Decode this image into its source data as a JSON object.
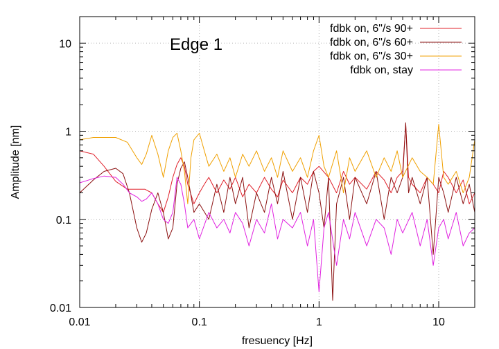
{
  "chart_data": {
    "type": "line",
    "title": "Edge 1",
    "xlabel": "fresuency [Hz]",
    "ylabel": "Amplitude [nm]",
    "xscale": "log",
    "yscale": "log",
    "xlim": [
      0.01,
      20
    ],
    "ylim": [
      0.01,
      20
    ],
    "xticks": [
      {
        "value": 0.01,
        "label": "0.01"
      },
      {
        "value": 0.1,
        "label": "0.1"
      },
      {
        "value": 1,
        "label": "1"
      },
      {
        "value": 10,
        "label": "10"
      }
    ],
    "yticks": [
      {
        "value": 0.01,
        "label": "0.01"
      },
      {
        "value": 0.1,
        "label": "0.1"
      },
      {
        "value": 1,
        "label": "1"
      },
      {
        "value": 10,
        "label": "10"
      }
    ],
    "grid": true,
    "legend_position": "top-right",
    "series": [
      {
        "name": "fdbk on, 6\"/s 90+",
        "color": "#e0202a",
        "x": [
          0.01,
          0.013,
          0.016,
          0.02,
          0.025,
          0.03,
          0.035,
          0.04,
          0.045,
          0.05,
          0.055,
          0.06,
          0.065,
          0.07,
          0.075,
          0.08,
          0.09,
          0.1,
          0.11,
          0.12,
          0.14,
          0.16,
          0.18,
          0.2,
          0.23,
          0.26,
          0.3,
          0.35,
          0.4,
          0.45,
          0.5,
          0.6,
          0.7,
          0.8,
          0.9,
          1.0,
          1.2,
          1.4,
          1.6,
          1.8,
          2.0,
          2.5,
          3.0,
          3.5,
          4.0,
          4.5,
          5.0,
          5.3,
          5.6,
          6.0,
          7.0,
          8.0,
          9.0,
          10.0,
          11.0,
          12.0,
          14.0,
          16.0,
          18.0,
          20.0
        ],
        "y": [
          0.6,
          0.55,
          0.4,
          0.27,
          0.22,
          0.22,
          0.22,
          0.2,
          0.15,
          0.12,
          0.18,
          0.3,
          0.42,
          0.5,
          0.4,
          0.25,
          0.15,
          0.2,
          0.25,
          0.3,
          0.2,
          0.28,
          0.22,
          0.3,
          0.18,
          0.25,
          0.2,
          0.3,
          0.22,
          0.18,
          0.28,
          0.2,
          0.3,
          0.25,
          0.35,
          0.4,
          0.3,
          0.2,
          0.35,
          0.25,
          0.3,
          0.22,
          0.35,
          0.28,
          0.2,
          0.3,
          0.35,
          1.2,
          0.3,
          0.25,
          0.2,
          0.3,
          0.25,
          0.2,
          0.35,
          0.3,
          0.2,
          0.28,
          0.15,
          0.2
        ]
      },
      {
        "name": "fdbk on, 6\"/s 60+",
        "color": "#8b1010",
        "x": [
          0.01,
          0.013,
          0.016,
          0.02,
          0.023,
          0.026,
          0.03,
          0.033,
          0.036,
          0.04,
          0.045,
          0.05,
          0.055,
          0.06,
          0.065,
          0.07,
          0.075,
          0.08,
          0.09,
          0.1,
          0.12,
          0.14,
          0.16,
          0.18,
          0.2,
          0.23,
          0.26,
          0.3,
          0.35,
          0.4,
          0.45,
          0.5,
          0.6,
          0.7,
          0.8,
          0.9,
          1.0,
          1.1,
          1.2,
          1.3,
          1.4,
          1.6,
          1.8,
          2.0,
          2.5,
          3.0,
          3.5,
          4.0,
          4.5,
          5.0,
          5.3,
          5.6,
          6.0,
          7.0,
          8.0,
          9.0,
          10.0,
          11.0,
          12.0,
          14.0,
          16.0,
          18.0,
          20.0
        ],
        "y": [
          0.2,
          0.28,
          0.35,
          0.38,
          0.33,
          0.2,
          0.08,
          0.055,
          0.07,
          0.13,
          0.2,
          0.12,
          0.06,
          0.08,
          0.25,
          0.38,
          0.45,
          0.3,
          0.12,
          0.15,
          0.1,
          0.25,
          0.12,
          0.3,
          0.15,
          0.3,
          0.08,
          0.2,
          0.12,
          0.3,
          0.15,
          0.35,
          0.1,
          0.3,
          0.12,
          0.35,
          0.2,
          0.08,
          0.3,
          0.012,
          0.15,
          0.3,
          0.1,
          0.3,
          0.15,
          0.35,
          0.1,
          0.3,
          0.2,
          0.3,
          1.25,
          0.2,
          0.3,
          0.15,
          0.3,
          0.04,
          0.3,
          0.2,
          0.12,
          0.3,
          0.15,
          0.25,
          0.12
        ]
      },
      {
        "name": "fdbk on, 6\"/s 30+",
        "color": "#f0a000",
        "x": [
          0.01,
          0.013,
          0.016,
          0.02,
          0.025,
          0.03,
          0.033,
          0.036,
          0.04,
          0.045,
          0.05,
          0.055,
          0.06,
          0.065,
          0.07,
          0.075,
          0.08,
          0.085,
          0.09,
          0.1,
          0.11,
          0.12,
          0.14,
          0.16,
          0.18,
          0.2,
          0.23,
          0.26,
          0.3,
          0.35,
          0.4,
          0.45,
          0.5,
          0.6,
          0.7,
          0.8,
          0.9,
          1.0,
          1.1,
          1.2,
          1.4,
          1.6,
          1.8,
          2.0,
          2.5,
          3.0,
          3.5,
          4.0,
          4.5,
          5.0,
          6.0,
          7.0,
          8.0,
          9.0,
          10.0,
          11.0,
          12.0,
          14.0,
          16.0,
          18.0,
          20.0
        ],
        "y": [
          0.8,
          0.85,
          0.85,
          0.85,
          0.75,
          0.5,
          0.42,
          0.55,
          0.9,
          0.55,
          0.3,
          0.6,
          0.85,
          0.95,
          0.6,
          0.35,
          0.15,
          0.5,
          0.8,
          0.95,
          0.6,
          0.4,
          0.55,
          0.35,
          0.5,
          0.3,
          0.55,
          0.4,
          0.6,
          0.35,
          0.5,
          0.3,
          0.6,
          0.35,
          0.5,
          0.3,
          0.6,
          0.9,
          0.4,
          0.3,
          0.6,
          0.2,
          0.5,
          0.35,
          0.6,
          0.3,
          0.5,
          0.35,
          0.6,
          0.3,
          0.5,
          0.35,
          0.3,
          0.25,
          1.2,
          0.3,
          0.25,
          0.35,
          0.2,
          0.3,
          0.8
        ]
      },
      {
        "name": "fdbk on, stay",
        "color": "#e020e0",
        "x": [
          0.01,
          0.013,
          0.016,
          0.02,
          0.023,
          0.026,
          0.03,
          0.033,
          0.036,
          0.04,
          0.045,
          0.05,
          0.055,
          0.06,
          0.065,
          0.07,
          0.075,
          0.08,
          0.09,
          0.1,
          0.12,
          0.14,
          0.16,
          0.18,
          0.2,
          0.23,
          0.26,
          0.3,
          0.35,
          0.4,
          0.45,
          0.5,
          0.6,
          0.7,
          0.8,
          0.9,
          1.0,
          1.1,
          1.2,
          1.4,
          1.6,
          1.8,
          2.0,
          2.5,
          3.0,
          3.5,
          4.0,
          4.5,
          5.0,
          6.0,
          7.0,
          8.0,
          9.0,
          10.0,
          11.0,
          12.0,
          14.0,
          16.0,
          18.0,
          20.0
        ],
        "y": [
          0.26,
          0.29,
          0.31,
          0.3,
          0.25,
          0.2,
          0.18,
          0.16,
          0.17,
          0.2,
          0.15,
          0.1,
          0.09,
          0.12,
          0.3,
          0.25,
          0.15,
          0.08,
          0.1,
          0.06,
          0.12,
          0.08,
          0.1,
          0.07,
          0.12,
          0.09,
          0.05,
          0.1,
          0.07,
          0.15,
          0.06,
          0.1,
          0.08,
          0.12,
          0.05,
          0.1,
          0.015,
          0.08,
          0.12,
          0.03,
          0.1,
          0.06,
          0.12,
          0.05,
          0.1,
          0.08,
          0.04,
          0.1,
          0.07,
          0.12,
          0.05,
          0.1,
          0.03,
          0.08,
          0.1,
          0.06,
          0.12,
          0.05,
          0.07,
          0.08
        ]
      }
    ]
  }
}
